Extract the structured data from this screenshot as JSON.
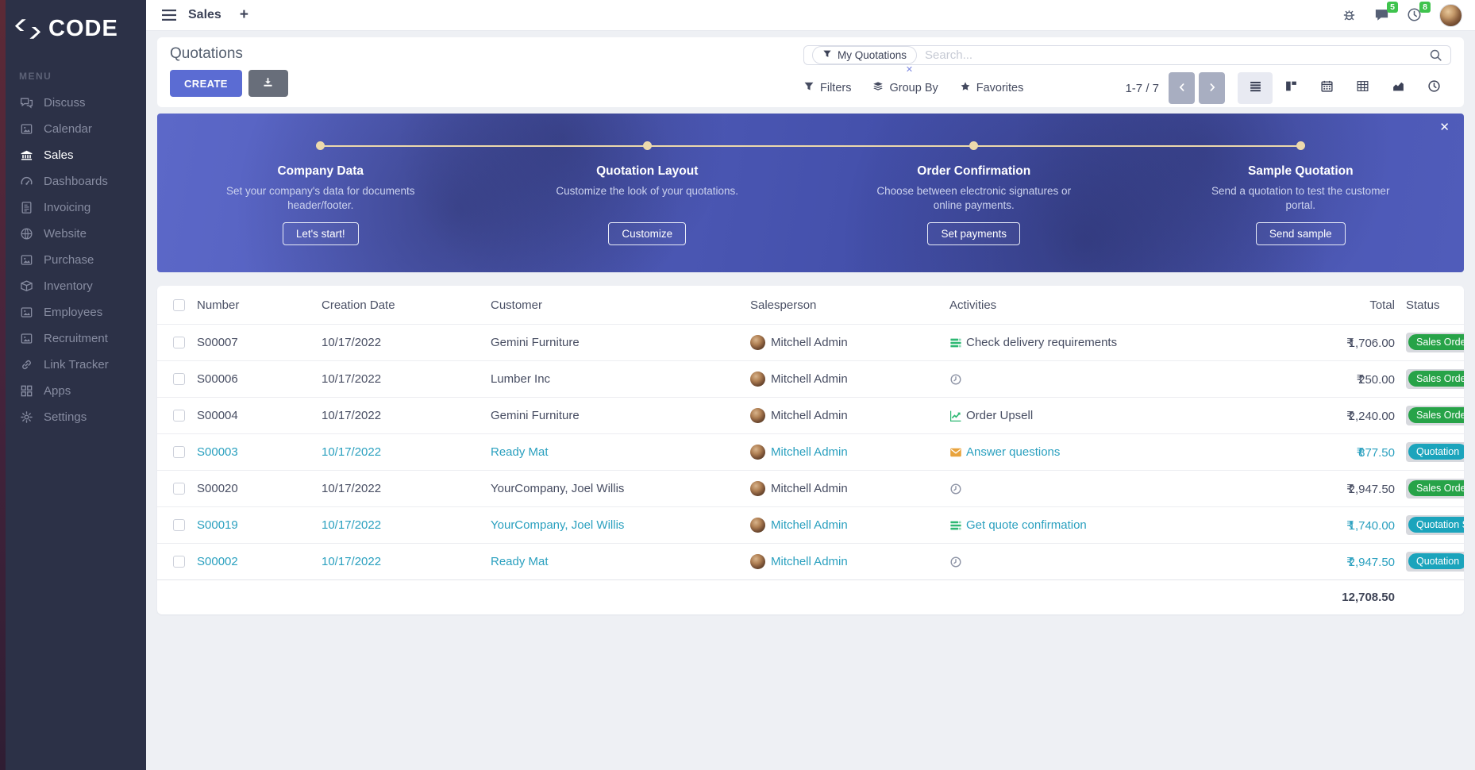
{
  "colors": {
    "accent": "#5b6cd3",
    "sidebar_bg": "#2c3147",
    "success_badge": "#27a348",
    "info_badge": "#1ba4bc",
    "highlight_row_text": "#2aa0bf",
    "banner_overlay": "#4b57b4",
    "timeline": "#ecd9ac",
    "count_badge_bg": "#3fc34d"
  },
  "sidebar": {
    "logo_text": "CODE",
    "menu_label": "MENU",
    "items": [
      {
        "label": "Discuss",
        "icon": "chat-bubbles-icon",
        "active": false
      },
      {
        "label": "Calendar",
        "icon": "image-placeholder-icon",
        "active": false
      },
      {
        "label": "Sales",
        "icon": "bank-icon",
        "active": true
      },
      {
        "label": "Dashboards",
        "icon": "gauge-icon",
        "active": false
      },
      {
        "label": "Invoicing",
        "icon": "invoice-icon",
        "active": false
      },
      {
        "label": "Website",
        "icon": "globe-icon",
        "active": false
      },
      {
        "label": "Purchase",
        "icon": "image-placeholder-icon",
        "active": false
      },
      {
        "label": "Inventory",
        "icon": "box-icon",
        "active": false
      },
      {
        "label": "Employees",
        "icon": "image-placeholder-icon",
        "active": false
      },
      {
        "label": "Recruitment",
        "icon": "image-placeholder-icon",
        "active": false
      },
      {
        "label": "Link Tracker",
        "icon": "link-icon",
        "active": false
      },
      {
        "label": "Apps",
        "icon": "grid-icon",
        "active": false
      },
      {
        "label": "Settings",
        "icon": "gear-icon",
        "active": false
      }
    ]
  },
  "topbar": {
    "title": "Sales",
    "new_tab": "+",
    "message_count": "5",
    "activity_count": "8"
  },
  "control_panel": {
    "title": "Quotations",
    "create_label": "CREATE",
    "search": {
      "facet_label": "My Quotations",
      "facet_remove": "✕",
      "placeholder": "Search..."
    },
    "filters_label": "Filters",
    "group_by_label": "Group By",
    "favorites_label": "Favorites",
    "pager_text": "1-7 / 7"
  },
  "onboarding": {
    "close_label": "✕",
    "steps": [
      {
        "title": "Company Data",
        "description": "Set your company's data for documents header/footer.",
        "button": "Let's start!"
      },
      {
        "title": "Quotation Layout",
        "description": "Customize the look of your quotations.",
        "button": "Customize"
      },
      {
        "title": "Order Confirmation",
        "description": "Choose between electronic signatures or online payments.",
        "button": "Set payments"
      },
      {
        "title": "Sample Quotation",
        "description": "Send a quotation to test the customer portal.",
        "button": "Send sample"
      }
    ]
  },
  "table": {
    "columns": [
      "Number",
      "Creation Date",
      "Customer",
      "Salesperson",
      "Activities",
      "Total",
      "Status"
    ],
    "rows": [
      {
        "number": "S00007",
        "creation_date": "10/17/2022",
        "customer": "Gemini Furniture",
        "salesperson": "Mitchell Admin",
        "activity_icon": "tasks-icon",
        "activity_label": "Check delivery requirements",
        "currency": "₹",
        "total": "1,706.00",
        "status": "Sales Order",
        "status_variant": "success",
        "highlighted": false
      },
      {
        "number": "S00006",
        "creation_date": "10/17/2022",
        "customer": "Lumber Inc",
        "salesperson": "Mitchell Admin",
        "activity_icon": "clock-icon",
        "activity_label": "",
        "currency": "₹",
        "total": "250.00",
        "status": "Sales Order",
        "status_variant": "success",
        "highlighted": false
      },
      {
        "number": "S00004",
        "creation_date": "10/17/2022",
        "customer": "Gemini Furniture",
        "salesperson": "Mitchell Admin",
        "activity_icon": "chart-icon",
        "activity_label": "Order Upsell",
        "currency": "₹",
        "total": "2,240.00",
        "status": "Sales Order",
        "status_variant": "success",
        "highlighted": false
      },
      {
        "number": "S00003",
        "creation_date": "10/17/2022",
        "customer": "Ready Mat",
        "salesperson": "Mitchell Admin",
        "activity_icon": "envelope-icon",
        "activity_label": "Answer questions",
        "currency": "₹",
        "total": "877.50",
        "status": "Quotation",
        "status_variant": "info",
        "highlighted": true
      },
      {
        "number": "S00020",
        "creation_date": "10/17/2022",
        "customer": "YourCompany, Joel Willis",
        "salesperson": "Mitchell Admin",
        "activity_icon": "clock-icon",
        "activity_label": "",
        "currency": "₹",
        "total": "2,947.50",
        "status": "Sales Order",
        "status_variant": "success",
        "highlighted": false
      },
      {
        "number": "S00019",
        "creation_date": "10/17/2022",
        "customer": "YourCompany, Joel Willis",
        "salesperson": "Mitchell Admin",
        "activity_icon": "tasks-icon",
        "activity_label": "Get quote confirmation",
        "currency": "₹",
        "total": "1,740.00",
        "status": "Quotation Sent",
        "status_variant": "info",
        "highlighted": true
      },
      {
        "number": "S00002",
        "creation_date": "10/17/2022",
        "customer": "Ready Mat",
        "salesperson": "Mitchell Admin",
        "activity_icon": "clock-icon",
        "activity_label": "",
        "currency": "₹",
        "total": "2,947.50",
        "status": "Quotation",
        "status_variant": "info",
        "highlighted": true
      }
    ],
    "footer_total": "12,708.50"
  }
}
